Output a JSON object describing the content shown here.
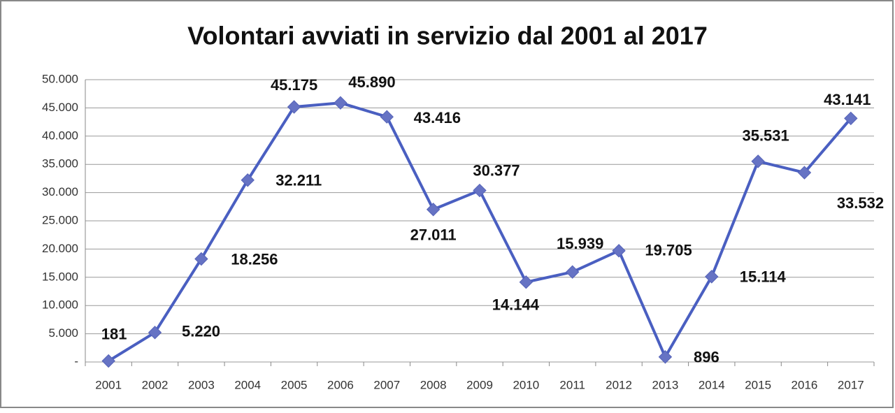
{
  "chart_data": {
    "type": "line",
    "title": "Volontari avviati in servizio dal 2001 al 2017",
    "categories": [
      "2001",
      "2002",
      "2003",
      "2004",
      "2005",
      "2006",
      "2007",
      "2008",
      "2009",
      "2010",
      "2011",
      "2012",
      "2013",
      "2014",
      "2015",
      "2016",
      "2017"
    ],
    "series": [
      {
        "name": "Volontari",
        "color": "#4a5fc1",
        "values": [
          181,
          5220,
          18256,
          32211,
          45175,
          45890,
          43416,
          27011,
          30377,
          14144,
          15939,
          19705,
          896,
          15114,
          35531,
          33532,
          43141
        ],
        "value_labels": [
          "181",
          "5.220",
          "18.256",
          "32.211",
          "45.175",
          "45.890",
          "43.416",
          "27.011",
          "30.377",
          "14.144",
          "15.939",
          "19.705",
          "896",
          "15.114",
          "35.531",
          "33.532",
          "43.141"
        ]
      }
    ],
    "ylim": [
      0,
      50000
    ],
    "yticks": [
      {
        "value": 0,
        "label": "-"
      },
      {
        "value": 5000,
        "label": "5.000"
      },
      {
        "value": 10000,
        "label": "10.000"
      },
      {
        "value": 15000,
        "label": "15.000"
      },
      {
        "value": 20000,
        "label": "20.000"
      },
      {
        "value": 25000,
        "label": "25.000"
      },
      {
        "value": 30000,
        "label": "30.000"
      },
      {
        "value": 35000,
        "label": "35.000"
      },
      {
        "value": 40000,
        "label": "40.000"
      },
      {
        "value": 45000,
        "label": "45.000"
      },
      {
        "value": 50000,
        "label": "50.000"
      }
    ],
    "grid": true
  }
}
